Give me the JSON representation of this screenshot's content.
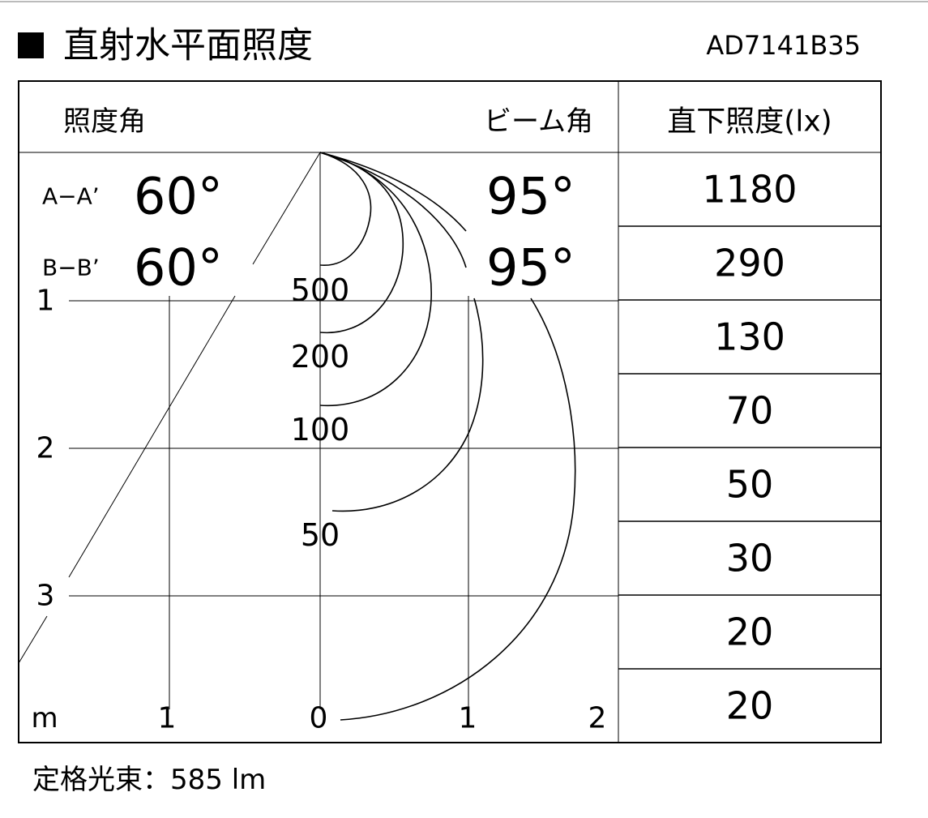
{
  "header": {
    "title": "直射水平面照度",
    "model": "AD7141B35"
  },
  "table": {
    "headers": {
      "illuminance_angle": "照度角",
      "beam_angle": "ビーム角",
      "direct_illuminance": "直下照度(lx)"
    },
    "rows": [
      {
        "section": "A−A’",
        "illuminance_angle": "60°",
        "beam_angle": "95°"
      },
      {
        "section": "B−B’",
        "illuminance_angle": "60°",
        "beam_angle": "95°"
      }
    ],
    "direct_illuminance": [
      1180,
      290,
      130,
      70,
      50,
      30,
      20,
      20
    ]
  },
  "diagram": {
    "depth_labels": [
      1,
      2,
      3
    ],
    "width_unit": "m",
    "width_labels": [
      1,
      0,
      1,
      2
    ],
    "contour_labels": [
      500,
      200,
      100,
      50
    ]
  },
  "footer": "定格光束：585 lm"
}
